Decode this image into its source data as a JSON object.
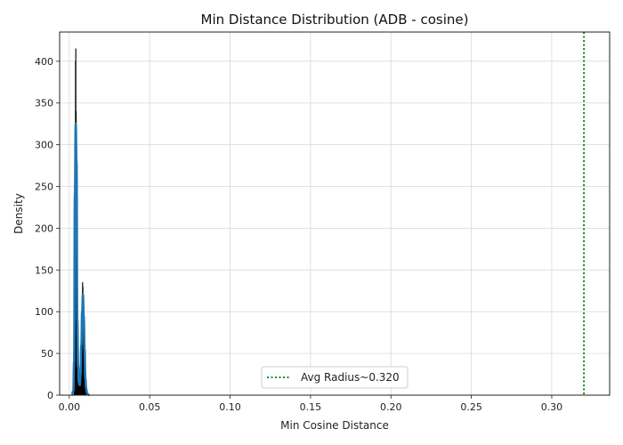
{
  "chart_data": {
    "type": "bar",
    "title": "Min Distance Distribution (ADB - cosine)",
    "xlabel": "Min Cosine Distance",
    "ylabel": "Density",
    "xlim": [
      -0.006,
      0.336
    ],
    "ylim": [
      0,
      435
    ],
    "x_ticks": [
      0.0,
      0.05,
      0.1,
      0.15,
      0.2,
      0.25,
      0.3
    ],
    "x_tick_labels": [
      "0.00",
      "0.05",
      "0.10",
      "0.15",
      "0.20",
      "0.25",
      "0.30"
    ],
    "y_ticks": [
      0,
      50,
      100,
      150,
      200,
      250,
      300,
      350,
      400
    ],
    "y_tick_labels": [
      "0",
      "50",
      "100",
      "150",
      "200",
      "250",
      "300",
      "350",
      "400"
    ],
    "grid": true,
    "legend_position": "bottom-center",
    "histogram": {
      "bin_width": 0.0002,
      "x": [
        0.003,
        0.0032,
        0.0034,
        0.0036,
        0.0038,
        0.004,
        0.0042,
        0.0044,
        0.0046,
        0.0048,
        0.005,
        0.0052,
        0.0054,
        0.0056,
        0.0058,
        0.006,
        0.0062,
        0.0064,
        0.0066,
        0.0068,
        0.007,
        0.0072,
        0.0074,
        0.0076,
        0.0078,
        0.008,
        0.0082,
        0.0084,
        0.0086,
        0.0088,
        0.009,
        0.0092,
        0.0094,
        0.0096,
        0.0098,
        0.01,
        0.0102,
        0.0104,
        0.0106,
        0.0108,
        0.011,
        0.0112,
        0.0114,
        0.0116,
        0.0118,
        0.012
      ],
      "values": [
        10,
        50,
        130,
        260,
        400,
        415,
        340,
        250,
        170,
        100,
        60,
        35,
        20,
        14,
        12,
        15,
        18,
        22,
        25,
        30,
        40,
        55,
        70,
        85,
        100,
        120,
        135,
        130,
        112,
        90,
        75,
        55,
        40,
        25,
        18,
        12,
        8,
        6,
        4,
        3,
        2,
        2,
        1,
        1,
        0,
        0
      ],
      "color": "#000000"
    },
    "kde": {
      "x": [
        0.0015,
        0.0025,
        0.003,
        0.0035,
        0.004,
        0.0045,
        0.005,
        0.0055,
        0.006,
        0.0065,
        0.007,
        0.0075,
        0.008,
        0.0085,
        0.009,
        0.0095,
        0.01,
        0.0105,
        0.011,
        0.0115,
        0.0125
      ],
      "values": [
        0,
        5,
        40,
        240,
        325,
        280,
        90,
        35,
        15,
        12,
        25,
        60,
        100,
        120,
        95,
        55,
        20,
        8,
        3,
        1,
        0
      ],
      "color": "#1f77b4"
    },
    "reference_line": {
      "x": 0.32,
      "label": "Avg Radius~0.320",
      "color": "#008000",
      "style": "dotted"
    }
  }
}
